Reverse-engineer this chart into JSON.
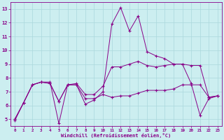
{
  "background_color": "#cceef0",
  "grid_color": "#aad8dc",
  "line_color": "#880088",
  "marker_color": "#880088",
  "xlabel": "Windchill (Refroidissement éolien,°C)",
  "xlim": [
    -0.5,
    23.5
  ],
  "ylim": [
    4.5,
    13.5
  ],
  "yticks": [
    5,
    6,
    7,
    8,
    9,
    10,
    11,
    12,
    13
  ],
  "xticks": [
    0,
    1,
    2,
    3,
    4,
    5,
    6,
    7,
    8,
    9,
    10,
    11,
    12,
    13,
    14,
    15,
    16,
    17,
    18,
    19,
    20,
    21,
    22,
    23
  ],
  "series": [
    {
      "x": [
        0,
        1,
        2,
        3,
        4,
        5,
        6,
        7,
        8,
        9,
        10,
        11,
        12,
        13,
        14,
        15,
        16,
        17,
        18,
        19,
        20,
        21,
        22,
        23
      ],
      "y": [
        4.9,
        6.2,
        7.5,
        7.7,
        7.7,
        4.7,
        7.5,
        7.5,
        6.1,
        6.4,
        7.0,
        11.9,
        13.1,
        11.4,
        12.5,
        9.9,
        9.6,
        9.4,
        9.0,
        9.0,
        7.6,
        5.3,
        6.5,
        6.7
      ]
    },
    {
      "x": [
        0,
        1,
        2,
        3,
        4,
        5,
        6,
        7,
        8,
        9,
        10,
        11,
        12,
        13,
        14,
        15,
        16,
        17,
        18,
        19,
        20,
        21,
        22,
        23
      ],
      "y": [
        5.0,
        6.2,
        7.5,
        7.7,
        7.6,
        6.3,
        7.5,
        7.6,
        6.8,
        6.8,
        7.4,
        8.8,
        8.8,
        9.0,
        9.2,
        8.9,
        8.8,
        8.9,
        9.0,
        9.0,
        8.9,
        8.9,
        6.6,
        6.7
      ]
    },
    {
      "x": [
        0,
        1,
        2,
        3,
        4,
        5,
        6,
        7,
        8,
        9,
        10,
        11,
        12,
        13,
        14,
        15,
        16,
        17,
        18,
        19,
        20,
        21,
        22,
        23
      ],
      "y": [
        5.0,
        6.2,
        7.5,
        7.7,
        7.6,
        6.3,
        7.5,
        7.5,
        6.5,
        6.5,
        6.8,
        6.6,
        6.7,
        6.7,
        6.9,
        7.1,
        7.1,
        7.1,
        7.2,
        7.5,
        7.5,
        7.5,
        6.6,
        6.7
      ]
    }
  ]
}
